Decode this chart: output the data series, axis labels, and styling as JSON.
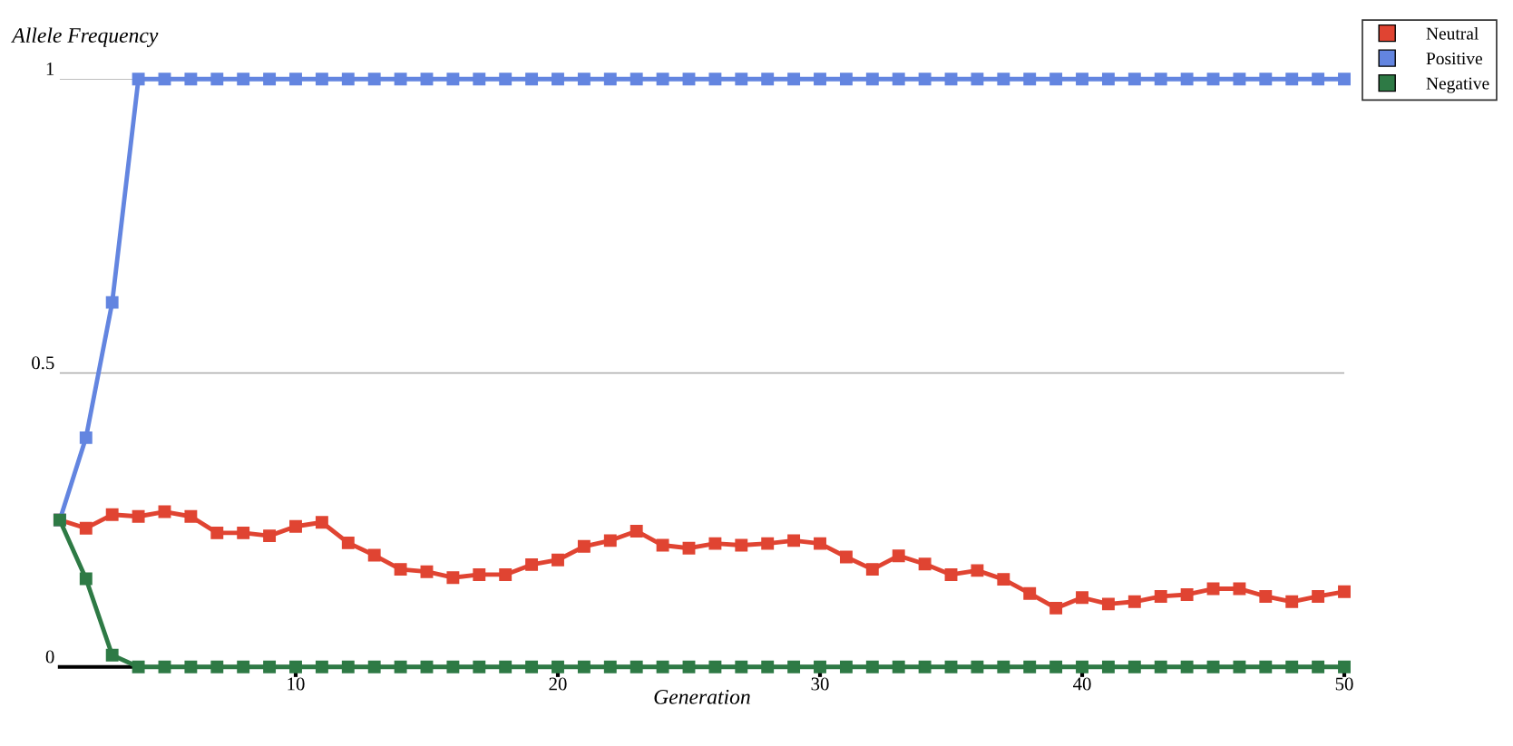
{
  "chart_data": {
    "type": "line",
    "ylabel": "Allele Frequency",
    "xlabel": "Generation",
    "x": [
      1,
      2,
      3,
      4,
      5,
      6,
      7,
      8,
      9,
      10,
      11,
      12,
      13,
      14,
      15,
      16,
      17,
      18,
      19,
      20,
      21,
      22,
      23,
      24,
      25,
      26,
      27,
      28,
      29,
      30,
      31,
      32,
      33,
      34,
      35,
      36,
      37,
      38,
      39,
      40,
      41,
      42,
      43,
      44,
      45,
      46,
      47,
      48,
      49,
      50
    ],
    "series": [
      {
        "name": "Neutral",
        "color": "#e04432",
        "values": [
          0.25,
          0.236,
          0.259,
          0.256,
          0.264,
          0.256,
          0.228,
          0.228,
          0.223,
          0.239,
          0.246,
          0.211,
          0.19,
          0.166,
          0.162,
          0.152,
          0.157,
          0.157,
          0.174,
          0.182,
          0.205,
          0.215,
          0.231,
          0.207,
          0.202,
          0.21,
          0.207,
          0.21,
          0.215,
          0.21,
          0.187,
          0.166,
          0.189,
          0.175,
          0.157,
          0.164,
          0.149,
          0.125,
          0.1,
          0.118,
          0.107,
          0.111,
          0.12,
          0.123,
          0.133,
          0.133,
          0.12,
          0.111,
          0.12,
          0.128
        ]
      },
      {
        "name": "Positive",
        "color": "#6385e0",
        "values": [
          0.25,
          0.39,
          0.62,
          1,
          1,
          1,
          1,
          1,
          1,
          1,
          1,
          1,
          1,
          1,
          1,
          1,
          1,
          1,
          1,
          1,
          1,
          1,
          1,
          1,
          1,
          1,
          1,
          1,
          1,
          1,
          1,
          1,
          1,
          1,
          1,
          1,
          1,
          1,
          1,
          1,
          1,
          1,
          1,
          1,
          1,
          1,
          1,
          1,
          1,
          1
        ]
      },
      {
        "name": "Negative",
        "color": "#2e7a45",
        "values": [
          0.25,
          0.15,
          0.02,
          0,
          0,
          0,
          0,
          0,
          0,
          0,
          0,
          0,
          0,
          0,
          0,
          0,
          0,
          0,
          0,
          0,
          0,
          0,
          0,
          0,
          0,
          0,
          0,
          0,
          0,
          0,
          0,
          0,
          0,
          0,
          0,
          0,
          0,
          0,
          0,
          0,
          0,
          0,
          0,
          0,
          0,
          0,
          0,
          0,
          0,
          0
        ]
      }
    ],
    "xlim": [
      1,
      50
    ],
    "xticks": [
      10,
      20,
      30,
      40,
      50
    ],
    "ylim": [
      0,
      1
    ],
    "yticks": [
      0,
      0.5,
      1
    ],
    "grid": "y",
    "legend": "top right",
    "marker": "square",
    "line_style": "solid"
  }
}
